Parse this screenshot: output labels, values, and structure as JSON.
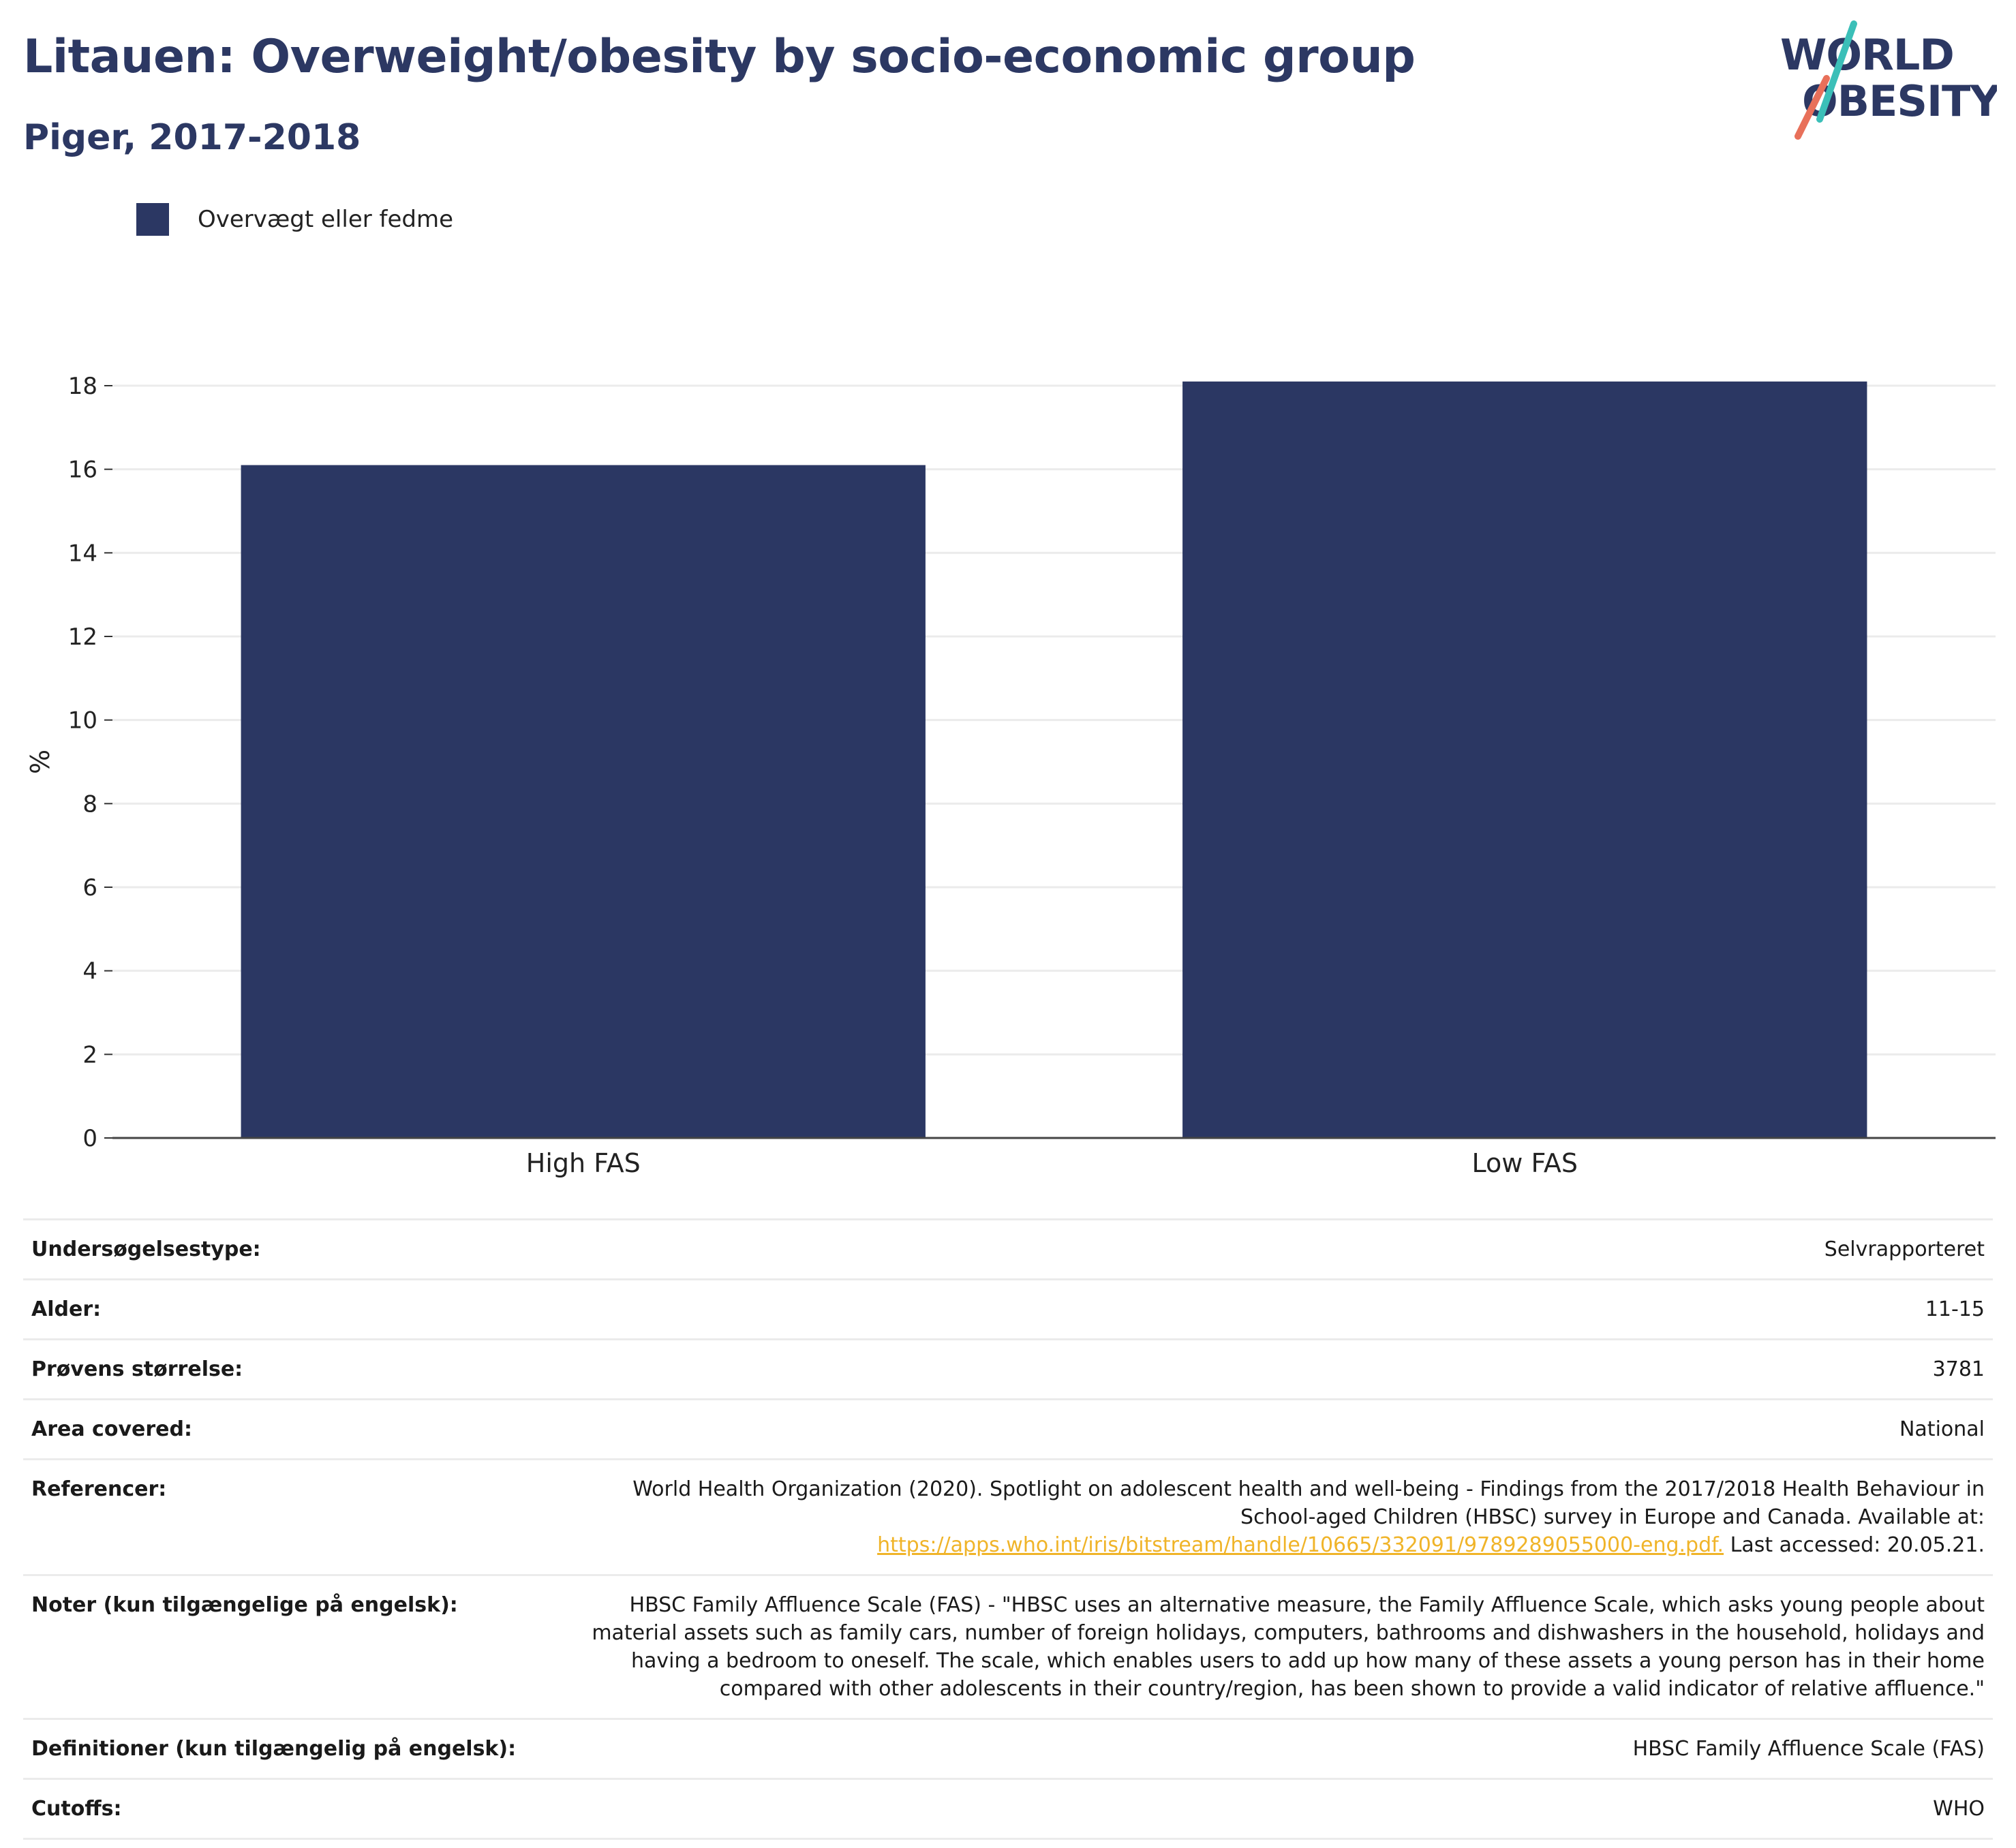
{
  "header": {
    "title": "Litauen: Overweight/obesity by socio-economic group",
    "subtitle": "Piger, 2017-2018"
  },
  "logo": {
    "line1": "WORLD",
    "line2": "OBESITY",
    "colors": {
      "navy": "#2c3863",
      "teal": "#3bbfb8",
      "coral": "#e8705a"
    }
  },
  "legend": {
    "label": "Overvægt eller fedme",
    "color": "#2b3763"
  },
  "chart_data": {
    "type": "bar",
    "categories": [
      "High FAS",
      "Low FAS"
    ],
    "series": [
      {
        "name": "Overvægt eller fedme",
        "values": [
          16.1,
          18.1
        ],
        "color": "#2b3763"
      }
    ],
    "title": "",
    "xlabel": "",
    "ylabel": "%",
    "ylim": [
      0,
      18
    ],
    "yticks": [
      0,
      2,
      4,
      6,
      8,
      10,
      12,
      14,
      16,
      18
    ],
    "grid": true,
    "legend_position": "top-left"
  },
  "info": {
    "survey_type": {
      "label": "Undersøgelsestype:",
      "value": "Selvrapporteret"
    },
    "age": {
      "label": "Alder:",
      "value": "11-15"
    },
    "sample_size": {
      "label": "Prøvens størrelse:",
      "value": "3781"
    },
    "area": {
      "label": "Area covered:",
      "value": "National"
    },
    "references": {
      "label": "Referencer:",
      "text": "World Health Organization (2020). Spotlight on adolescent health and well-being - Findings from the 2017/2018 Health Behaviour in School-aged Children (HBSC) survey in Europe and Canada. Available at:",
      "link": "https://apps.who.int/iris/bitstream/handle/10665/332091/9789289055000-eng.pdf.",
      "suffix": "Last accessed: 20.05.21.",
      "link_color": "#f0b429"
    },
    "notes": {
      "label": "Noter (kun tilgængelige på engelsk):",
      "value": "HBSC Family Affluence Scale (FAS) - \"HBSC uses an alternative measure, the Family Affluence Scale, which asks young people about material assets such as family cars, number of foreign holidays, computers, bathrooms and dishwashers in the household, holidays and having a bedroom to oneself. The scale, which enables users to add up how many of these assets a young person has in their home compared with other adolescents in their country/region, has been shown to provide a valid indicator of relative affluence.\""
    },
    "definitions": {
      "label": "Definitioner (kun tilgængelig på engelsk):",
      "value": "HBSC Family Affluence Scale (FAS)"
    },
    "cutoffs": {
      "label": "Cutoffs:",
      "value": "WHO"
    }
  }
}
